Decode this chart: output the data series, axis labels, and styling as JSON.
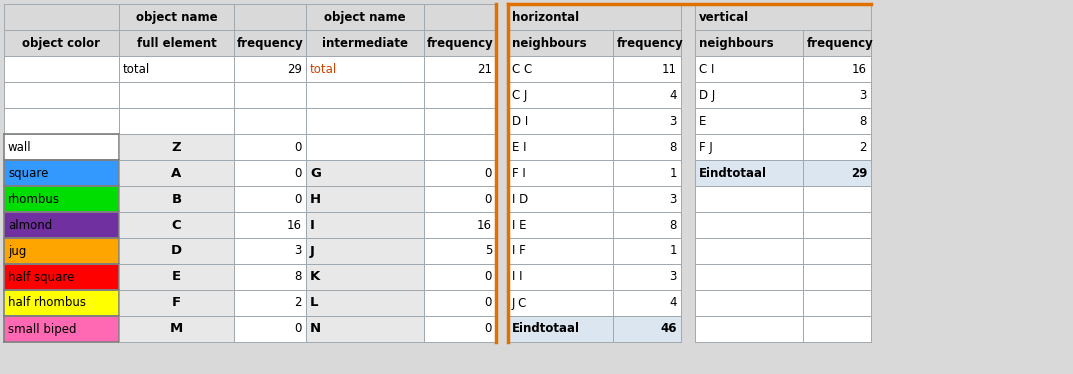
{
  "bg_color": "#d9d9d9",
  "white": "#ffffff",
  "light_blue_header": "#dce6f1",
  "light_gray": "#e8e8e8",
  "grid_color": "#a0a8b0",
  "orange_border": "#e07000",
  "fig_w": 10.73,
  "fig_h": 3.74,
  "dpi": 100,
  "left_table": {
    "rows": [
      {
        "color_name": "wall",
        "color_hex": "#ffffff",
        "letter_A": "Z",
        "freq_A": "0",
        "letter_B": "",
        "freq_B": ""
      },
      {
        "color_name": "square",
        "color_hex": "#3399ff",
        "letter_A": "A",
        "freq_A": "0",
        "letter_B": "G",
        "freq_B": "0"
      },
      {
        "color_name": "rhombus",
        "color_hex": "#00dd00",
        "letter_A": "B",
        "freq_A": "0",
        "letter_B": "H",
        "freq_B": "0"
      },
      {
        "color_name": "almond",
        "color_hex": "#7030a0",
        "letter_A": "C",
        "freq_A": "16",
        "letter_B": "I",
        "freq_B": "16"
      },
      {
        "color_name": "jug",
        "color_hex": "#ffa500",
        "letter_A": "D",
        "freq_A": "3",
        "letter_B": "J",
        "freq_B": "5"
      },
      {
        "color_name": "half square",
        "color_hex": "#ff0000",
        "letter_A": "E",
        "freq_A": "8",
        "letter_B": "K",
        "freq_B": "0"
      },
      {
        "color_name": "half rhombus",
        "color_hex": "#ffff00",
        "letter_A": "F",
        "freq_A": "2",
        "letter_B": "L",
        "freq_B": "0"
      },
      {
        "color_name": "small biped",
        "color_hex": "#ff69b4",
        "letter_A": "M",
        "freq_A": "0",
        "letter_B": "N",
        "freq_B": "0"
      }
    ]
  },
  "right_table_horiz": {
    "rows": [
      [
        "C C",
        "11"
      ],
      [
        "C J",
        "4"
      ],
      [
        "D I",
        "3"
      ],
      [
        "E I",
        "8"
      ],
      [
        "F I",
        "1"
      ],
      [
        "I D",
        "3"
      ],
      [
        "I E",
        "8"
      ],
      [
        "I F",
        "1"
      ],
      [
        "I I",
        "3"
      ],
      [
        "J C",
        "4"
      ],
      [
        "Eindtotaal",
        "46"
      ]
    ]
  },
  "right_table_vert": {
    "rows": [
      [
        "C I",
        "16"
      ],
      [
        "D J",
        "3"
      ],
      [
        "E",
        "8"
      ],
      [
        "F J",
        "2"
      ],
      [
        "Eindtotaal",
        "29"
      ],
      [
        "",
        ""
      ],
      [
        "",
        ""
      ],
      [
        "",
        ""
      ],
      [
        "",
        ""
      ],
      [
        "",
        ""
      ],
      [
        "",
        ""
      ]
    ]
  }
}
